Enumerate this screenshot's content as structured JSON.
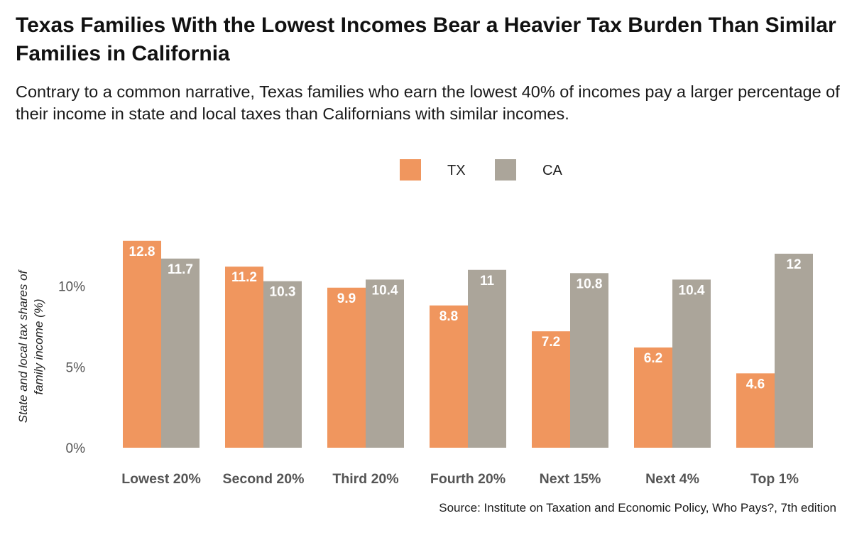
{
  "header": {
    "title": "Texas Families With the Lowest Incomes Bear a Heavier Tax Burden Than Similar Families in California",
    "subtitle": "Contrary to a common narrative, Texas families who earn the lowest 40% of incomes pay a larger percentage of their income in state and local taxes than Californians with similar incomes."
  },
  "footer": {
    "source": "Source: Institute on Taxation and Economic Policy, Who Pays?, 7th edition"
  },
  "colors": {
    "TX": "#f0965e",
    "CA": "#aba59a"
  },
  "chart_data": {
    "type": "bar",
    "title": "Texas Families With the Lowest Incomes Bear a Heavier Tax Burden Than Similar Families in California",
    "xlabel": "",
    "ylabel": "State and local tax shares of family income (%)",
    "ylabel_lines": [
      "State and local tax shares of",
      "family income (%)"
    ],
    "categories": [
      "Lowest 20%",
      "Second 20%",
      "Third 20%",
      "Fourth 20%",
      "Next 15%",
      "Next 4%",
      "Top 1%"
    ],
    "series": [
      {
        "name": "TX",
        "values": [
          12.8,
          11.2,
          9.9,
          8.8,
          7.2,
          6.2,
          4.6
        ]
      },
      {
        "name": "CA",
        "values": [
          11.7,
          10.3,
          10.4,
          11,
          10.8,
          10.4,
          12
        ]
      }
    ],
    "ylim": [
      0,
      12.8
    ],
    "yticks": [
      0,
      5,
      10
    ],
    "ytick_labels": [
      "0%",
      "5%",
      "10%"
    ],
    "grid": false,
    "legend_position": "top-center"
  }
}
